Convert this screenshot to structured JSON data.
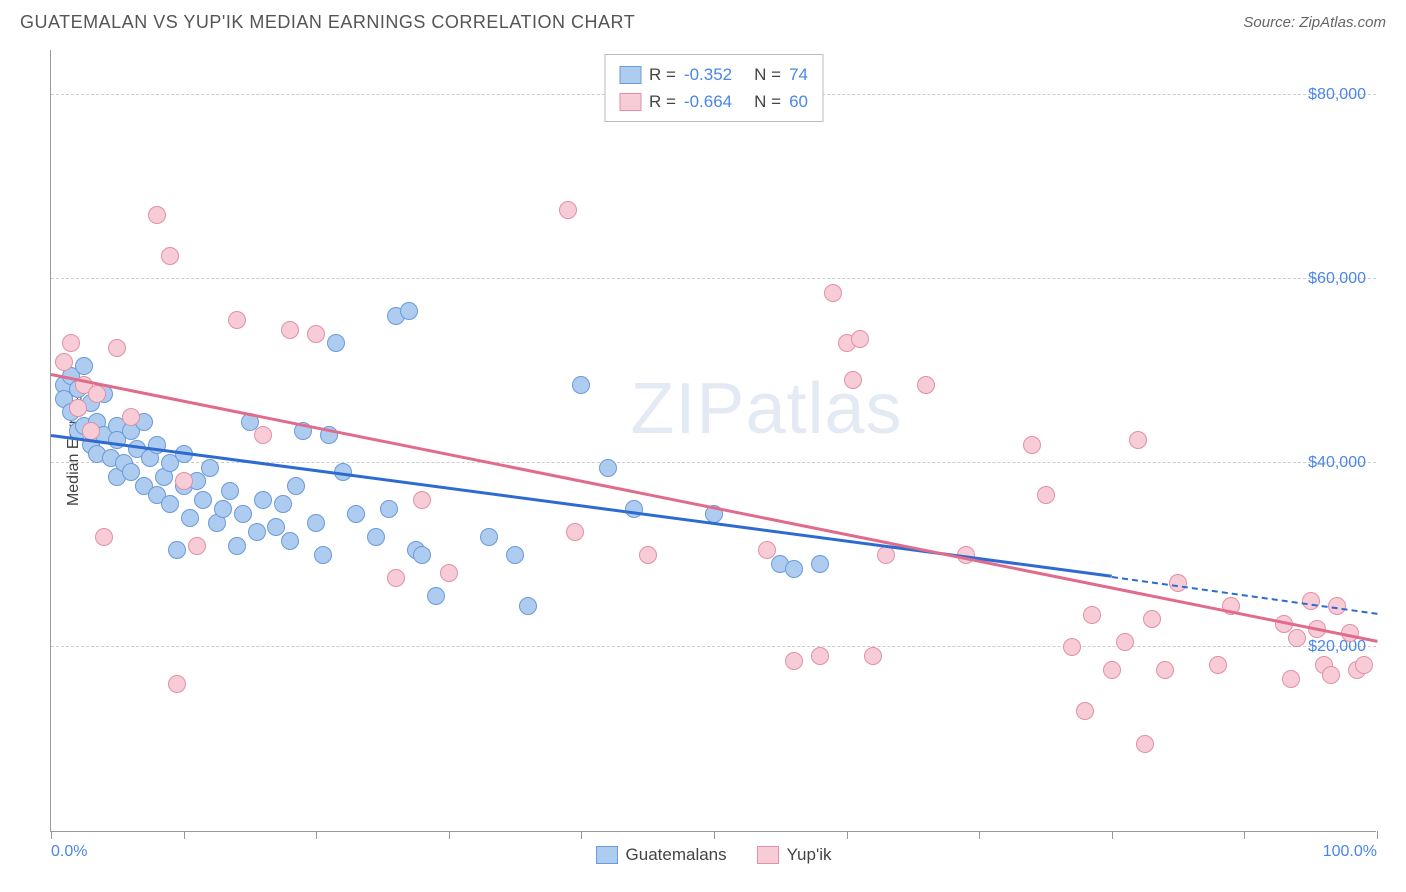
{
  "header": {
    "title": "GUATEMALAN VS YUP'IK MEDIAN EARNINGS CORRELATION CHART",
    "source_prefix": "Source: ",
    "source_name": "ZipAtlas.com"
  },
  "watermark": {
    "part1": "ZIP",
    "part2": "atlas"
  },
  "chart": {
    "type": "scatter",
    "ylabel": "Median Earnings",
    "xlim": [
      0,
      100
    ],
    "ylim": [
      0,
      85000
    ],
    "xtick_positions": [
      0,
      10,
      20,
      30,
      40,
      50,
      60,
      70,
      80,
      90,
      100
    ],
    "xtick_labels": {
      "0": "0.0%",
      "100": "100.0%"
    },
    "ytick_positions": [
      20000,
      40000,
      60000,
      80000
    ],
    "ytick_labels": [
      "$20,000",
      "$40,000",
      "$60,000",
      "$80,000"
    ],
    "gridline_color": "#cccccc",
    "background_color": "#ffffff",
    "point_radius": 9,
    "point_stroke_width": 1.5,
    "series": [
      {
        "name": "Guatemalans",
        "fill": "#aeccf0",
        "stroke": "#6b9ad8",
        "R": "-0.352",
        "N": "74",
        "trend": {
          "x1": 0,
          "y1": 42800,
          "x2": 80,
          "y2": 27500,
          "color": "#2d6bd1",
          "dash_to_x": 100,
          "dash_to_y": 23500
        },
        "points": [
          [
            1,
            48500
          ],
          [
            1,
            47000
          ],
          [
            1.5,
            49500
          ],
          [
            1.5,
            45500
          ],
          [
            2,
            48000
          ],
          [
            2,
            46000
          ],
          [
            2,
            43500
          ],
          [
            2.5,
            50500
          ],
          [
            2.5,
            44000
          ],
          [
            3,
            46500
          ],
          [
            3,
            42000
          ],
          [
            3.5,
            44500
          ],
          [
            3.5,
            41000
          ],
          [
            4,
            43000
          ],
          [
            4,
            47500
          ],
          [
            4.5,
            40500
          ],
          [
            5,
            44000
          ],
          [
            5,
            42500
          ],
          [
            5,
            38500
          ],
          [
            5.5,
            40000
          ],
          [
            6,
            43500
          ],
          [
            6,
            39000
          ],
          [
            6.5,
            41500
          ],
          [
            7,
            37500
          ],
          [
            7,
            44500
          ],
          [
            7.5,
            40500
          ],
          [
            8,
            36500
          ],
          [
            8,
            42000
          ],
          [
            8.5,
            38500
          ],
          [
            9,
            40000
          ],
          [
            9,
            35500
          ],
          [
            9.5,
            30500
          ],
          [
            10,
            37500
          ],
          [
            10,
            41000
          ],
          [
            10.5,
            34000
          ],
          [
            11,
            38000
          ],
          [
            11.5,
            36000
          ],
          [
            12,
            39500
          ],
          [
            12.5,
            33500
          ],
          [
            13,
            35000
          ],
          [
            13.5,
            37000
          ],
          [
            14,
            31000
          ],
          [
            14.5,
            34500
          ],
          [
            15,
            44500
          ],
          [
            15.5,
            32500
          ],
          [
            16,
            36000
          ],
          [
            17,
            33000
          ],
          [
            17.5,
            35500
          ],
          [
            18,
            31500
          ],
          [
            18.5,
            37500
          ],
          [
            19,
            43500
          ],
          [
            20,
            33500
          ],
          [
            20.5,
            30000
          ],
          [
            21,
            43000
          ],
          [
            21.5,
            53000
          ],
          [
            22,
            39000
          ],
          [
            23,
            34500
          ],
          [
            24.5,
            32000
          ],
          [
            25.5,
            35000
          ],
          [
            26,
            56000
          ],
          [
            27,
            56500
          ],
          [
            27.5,
            30500
          ],
          [
            28,
            30000
          ],
          [
            29,
            25500
          ],
          [
            33,
            32000
          ],
          [
            35,
            30000
          ],
          [
            36,
            24500
          ],
          [
            40,
            48500
          ],
          [
            42,
            39500
          ],
          [
            44,
            35000
          ],
          [
            50,
            34500
          ],
          [
            55,
            29000
          ],
          [
            56,
            28500
          ],
          [
            58,
            29000
          ]
        ]
      },
      {
        "name": "Yup'ik",
        "fill": "#f7ccd6",
        "stroke": "#e290a5",
        "R": "-0.664",
        "N": "60",
        "trend": {
          "x1": 0,
          "y1": 49500,
          "x2": 100,
          "y2": 20500,
          "color": "#e16b8c"
        },
        "points": [
          [
            1,
            51000
          ],
          [
            1.5,
            53000
          ],
          [
            2,
            46000
          ],
          [
            2.5,
            48500
          ],
          [
            3,
            43500
          ],
          [
            3.5,
            47500
          ],
          [
            4,
            32000
          ],
          [
            5,
            52500
          ],
          [
            6,
            45000
          ],
          [
            8,
            67000
          ],
          [
            9,
            62500
          ],
          [
            9.5,
            16000
          ],
          [
            10,
            38000
          ],
          [
            11,
            31000
          ],
          [
            14,
            55500
          ],
          [
            16,
            43000
          ],
          [
            18,
            54500
          ],
          [
            20,
            54000
          ],
          [
            26,
            27500
          ],
          [
            28,
            36000
          ],
          [
            30,
            28000
          ],
          [
            39,
            67500
          ],
          [
            39.5,
            32500
          ],
          [
            45,
            30000
          ],
          [
            54,
            30500
          ],
          [
            56,
            18500
          ],
          [
            58,
            19000
          ],
          [
            59,
            58500
          ],
          [
            60,
            53000
          ],
          [
            60.5,
            49000
          ],
          [
            61,
            53500
          ],
          [
            62,
            19000
          ],
          [
            63,
            30000
          ],
          [
            66,
            48500
          ],
          [
            69,
            30000
          ],
          [
            74,
            42000
          ],
          [
            75,
            36500
          ],
          [
            77,
            20000
          ],
          [
            78,
            13000
          ],
          [
            78.5,
            23500
          ],
          [
            80,
            17500
          ],
          [
            81,
            20500
          ],
          [
            82,
            42500
          ],
          [
            82.5,
            9500
          ],
          [
            83,
            23000
          ],
          [
            84,
            17500
          ],
          [
            85,
            27000
          ],
          [
            88,
            18000
          ],
          [
            89,
            24500
          ],
          [
            93,
            22500
          ],
          [
            93.5,
            16500
          ],
          [
            94,
            21000
          ],
          [
            95,
            25000
          ],
          [
            95.5,
            22000
          ],
          [
            96,
            18000
          ],
          [
            96.5,
            17000
          ],
          [
            97,
            24500
          ],
          [
            98,
            21500
          ],
          [
            98.5,
            17500
          ],
          [
            99,
            18000
          ]
        ]
      }
    ],
    "legend_bottom": [
      {
        "label": "Guatemalans",
        "fill": "#aeccf0",
        "stroke": "#6b9ad8"
      },
      {
        "label": "Yup'ik",
        "fill": "#f7ccd6",
        "stroke": "#e290a5"
      }
    ]
  }
}
